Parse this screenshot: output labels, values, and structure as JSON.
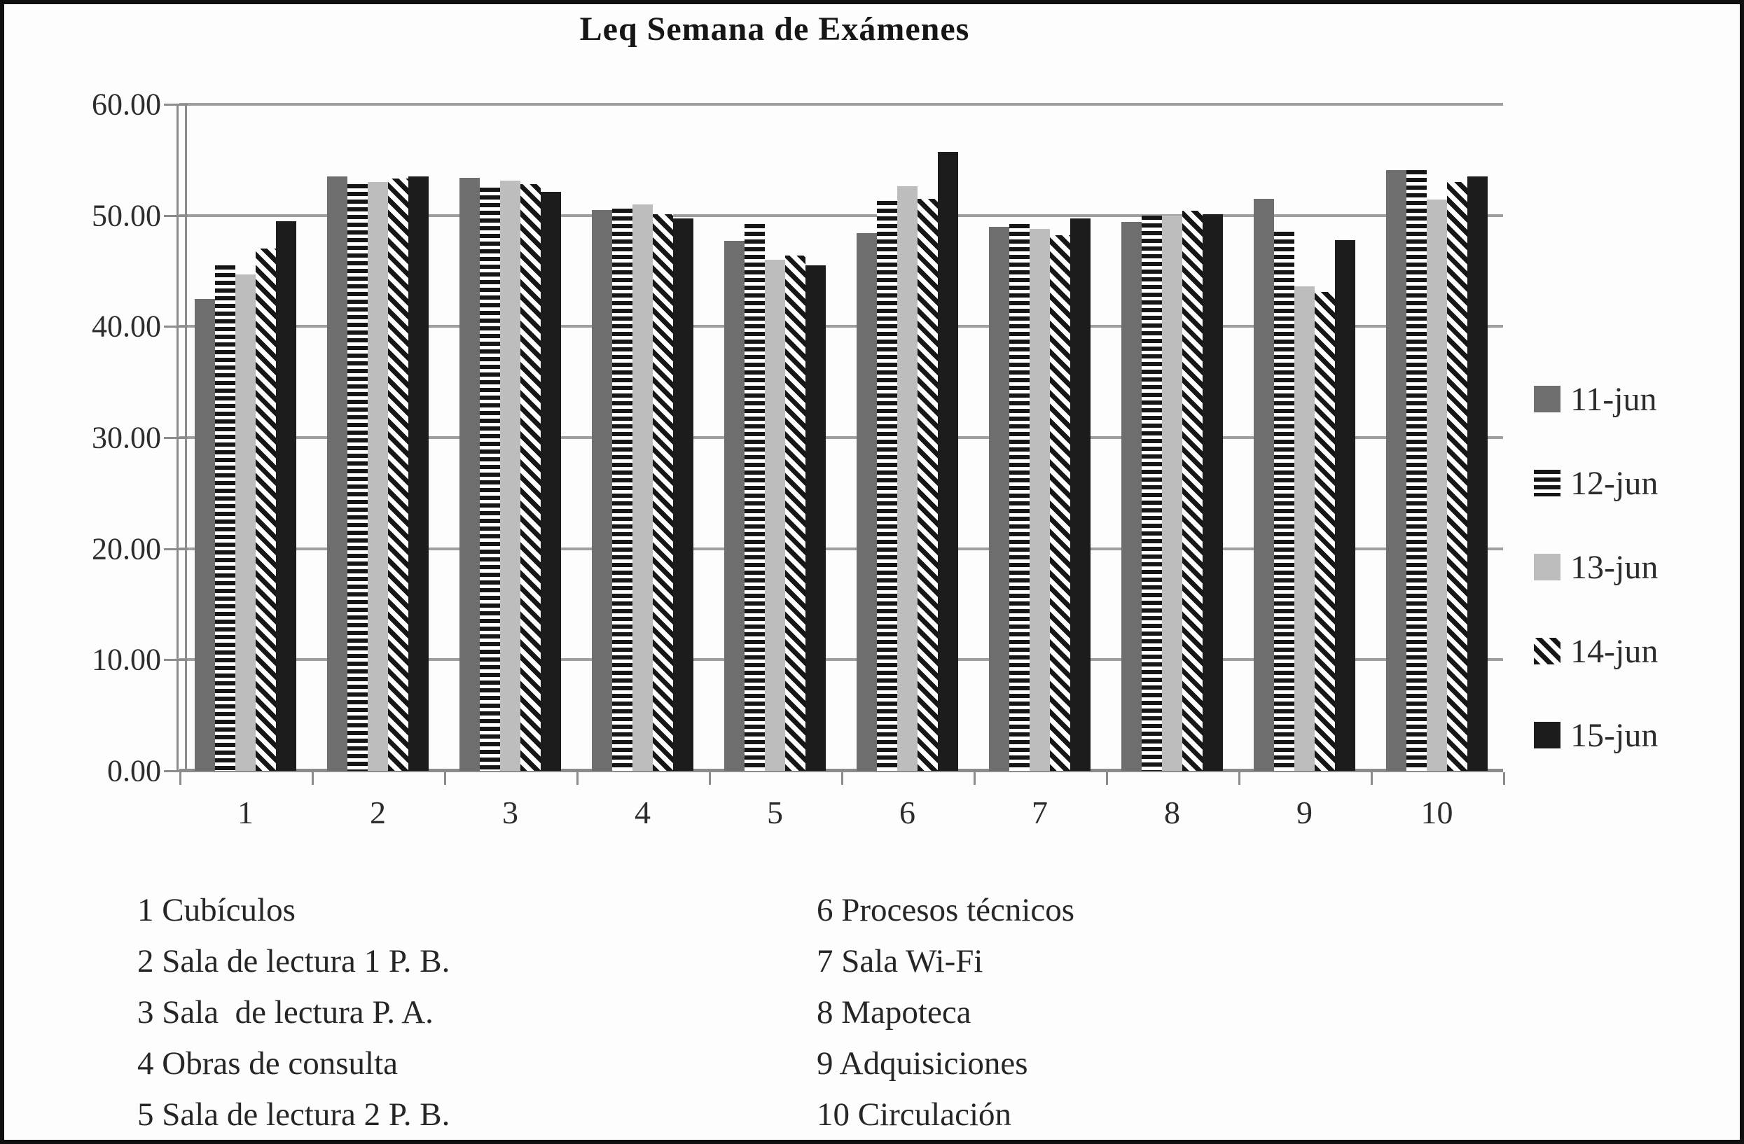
{
  "title": "Leq Semana de Exámenes",
  "colors": {
    "c-dark": "#6e6e6e",
    "c-light": "#bdbdbd",
    "c-black": "#1c1c1c",
    "c-stripe": "#161616",
    "c-grid": "#9f9f9f",
    "c-axis": "#8c8c8c"
  },
  "y_axis": {
    "labels": [
      "60.00",
      "50.00",
      "40.00",
      "30.00",
      "20.00",
      "10.00",
      "0.00"
    ]
  },
  "chart_data": {
    "type": "bar",
    "title": "Leq Semana de Exámenes",
    "categories": [
      "1",
      "2",
      "3",
      "4",
      "5",
      "6",
      "7",
      "8",
      "9",
      "10"
    ],
    "series": [
      {
        "name": "11-jun",
        "pattern": "solid-dark-gray",
        "values": [
          42.5,
          53.5,
          53.4,
          50.5,
          47.7,
          48.4,
          49.0,
          49.4,
          51.5,
          54.1
        ]
      },
      {
        "name": "12-jun",
        "pattern": "horizontal-stripes",
        "values": [
          45.5,
          52.8,
          52.5,
          50.6,
          49.2,
          51.3,
          49.2,
          50.0,
          48.5,
          54.1
        ]
      },
      {
        "name": "13-jun",
        "pattern": "solid-light-gray",
        "values": [
          44.7,
          53.0,
          53.1,
          51.0,
          46.0,
          52.6,
          48.8,
          50.0,
          43.6,
          51.4
        ]
      },
      {
        "name": "14-jun",
        "pattern": "diagonal-stripes",
        "values": [
          47.0,
          53.3,
          52.8,
          50.1,
          46.4,
          51.5,
          48.2,
          50.4,
          43.1,
          53.0
        ]
      },
      {
        "name": "15-jun",
        "pattern": "solid-black",
        "values": [
          49.5,
          53.5,
          52.1,
          49.7,
          45.5,
          55.7,
          49.7,
          50.1,
          47.8,
          53.5
        ]
      }
    ],
    "ylim": [
      0,
      60
    ],
    "ytick_step": 10,
    "grid": true,
    "legend_position": "right"
  },
  "category_key": {
    "left": [
      "1 Cubículos",
      "2 Sala de lectura 1 P. B.",
      "3 Sala  de lectura P. A.",
      "4 Obras de consulta",
      "5 Sala de lectura 2 P. B."
    ],
    "right": [
      "6 Procesos técnicos",
      "7 Sala Wi-Fi",
      "8 Mapoteca",
      "9 Adquisiciones",
      "10 Circulación"
    ]
  }
}
